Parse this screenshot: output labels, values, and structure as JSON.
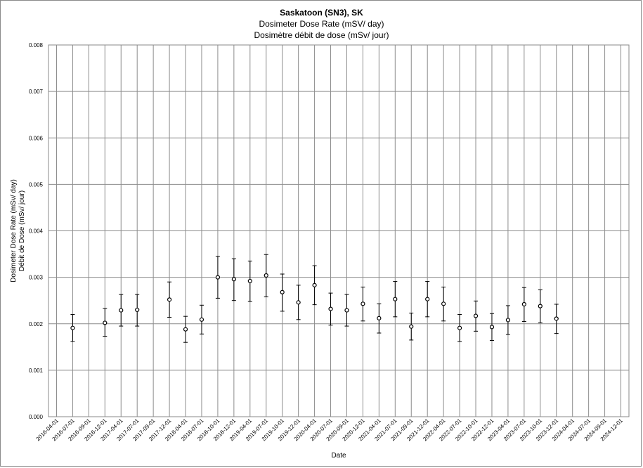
{
  "chart_data": {
    "type": "scatter",
    "title": "Saskatoon (SN3), SK",
    "subtitle": "Dosimeter Dose Rate (mSV/ day)",
    "subtitle_fr": "Dosimètre débit de dose (mSv/ jour)",
    "xlabel": "Date",
    "ylabel": "Dosimeter Dose Rate (mSv/ day)",
    "ylabel_fr": "Débit de Dose (mSv/ jour)",
    "ylim": [
      0,
      0.008
    ],
    "yticks": [
      "0.000",
      "0.001",
      "0.002",
      "0.003",
      "0.004",
      "0.005",
      "0.006",
      "0.007",
      "0.008"
    ],
    "xticks": [
      "2016-04-01",
      "2016-07-01",
      "2016-09-01",
      "2016-12-01",
      "2017-04-01",
      "2017-07-01",
      "2017-09-01",
      "2017-12-01",
      "2018-04-01",
      "2018-07-01",
      "2018-10-01",
      "2018-12-01",
      "2019-04-01",
      "2019-07-01",
      "2019-10-01",
      "2019-12-01",
      "2020-04-01",
      "2020-07-01",
      "2020-09-01",
      "2020-12-01",
      "2021-04-01",
      "2021-07-01",
      "2021-09-01",
      "2021-12-01",
      "2022-04-01",
      "2022-07-01",
      "2022-10-01",
      "2022-12-01",
      "2023-04-01",
      "2023-07-01",
      "2023-10-01",
      "2023-12-01",
      "2024-04-01",
      "2024-07-01",
      "2024-09-01",
      "2024-12-01"
    ],
    "grid": true,
    "points": [
      {
        "x": "2016-07-01",
        "y": 0.00191,
        "err_low": 0.00162,
        "err_high": 0.0022
      },
      {
        "x": "2016-12-01",
        "y": 0.00202,
        "err_low": 0.00173,
        "err_high": 0.00233
      },
      {
        "x": "2017-04-01",
        "y": 0.00229,
        "err_low": 0.00195,
        "err_high": 0.00263
      },
      {
        "x": "2017-07-01",
        "y": 0.0023,
        "err_low": 0.00195,
        "err_high": 0.00263
      },
      {
        "x": "2017-12-01",
        "y": 0.00252,
        "err_low": 0.00214,
        "err_high": 0.0029
      },
      {
        "x": "2018-04-01",
        "y": 0.00188,
        "err_low": 0.0016,
        "err_high": 0.00216
      },
      {
        "x": "2018-07-01",
        "y": 0.00209,
        "err_low": 0.00178,
        "err_high": 0.0024
      },
      {
        "x": "2018-10-01",
        "y": 0.003,
        "err_low": 0.00255,
        "err_high": 0.00345
      },
      {
        "x": "2018-12-01",
        "y": 0.00296,
        "err_low": 0.0025,
        "err_high": 0.0034
      },
      {
        "x": "2019-04-01",
        "y": 0.00292,
        "err_low": 0.00248,
        "err_high": 0.00335
      },
      {
        "x": "2019-07-01",
        "y": 0.00304,
        "err_low": 0.00258,
        "err_high": 0.00349
      },
      {
        "x": "2019-10-01",
        "y": 0.00268,
        "err_low": 0.00227,
        "err_high": 0.00307
      },
      {
        "x": "2019-12-01",
        "y": 0.00246,
        "err_low": 0.00209,
        "err_high": 0.00283
      },
      {
        "x": "2020-04-01",
        "y": 0.00283,
        "err_low": 0.00241,
        "err_high": 0.00325
      },
      {
        "x": "2020-07-01",
        "y": 0.00232,
        "err_low": 0.00197,
        "err_high": 0.00266
      },
      {
        "x": "2020-09-01",
        "y": 0.00229,
        "err_low": 0.00195,
        "err_high": 0.00263
      },
      {
        "x": "2020-12-01",
        "y": 0.00243,
        "err_low": 0.00206,
        "err_high": 0.00279
      },
      {
        "x": "2021-04-01",
        "y": 0.00212,
        "err_low": 0.0018,
        "err_high": 0.00243
      },
      {
        "x": "2021-07-01",
        "y": 0.00253,
        "err_low": 0.00215,
        "err_high": 0.00291
      },
      {
        "x": "2021-09-01",
        "y": 0.00194,
        "err_low": 0.00165,
        "err_high": 0.00223
      },
      {
        "x": "2021-12-01",
        "y": 0.00253,
        "err_low": 0.00215,
        "err_high": 0.00291
      },
      {
        "x": "2022-04-01",
        "y": 0.00243,
        "err_low": 0.00206,
        "err_high": 0.00279
      },
      {
        "x": "2022-07-01",
        "y": 0.00191,
        "err_low": 0.00162,
        "err_high": 0.0022
      },
      {
        "x": "2022-10-01",
        "y": 0.00217,
        "err_low": 0.00184,
        "err_high": 0.00249
      },
      {
        "x": "2022-12-01",
        "y": 0.00193,
        "err_low": 0.00164,
        "err_high": 0.00222
      },
      {
        "x": "2023-04-01",
        "y": 0.00208,
        "err_low": 0.00177,
        "err_high": 0.00239
      },
      {
        "x": "2023-07-01",
        "y": 0.00242,
        "err_low": 0.00205,
        "err_high": 0.00278
      },
      {
        "x": "2023-10-01",
        "y": 0.00238,
        "err_low": 0.00202,
        "err_high": 0.00273
      },
      {
        "x": "2023-12-01",
        "y": 0.00211,
        "err_low": 0.00179,
        "err_high": 0.00242
      }
    ]
  }
}
